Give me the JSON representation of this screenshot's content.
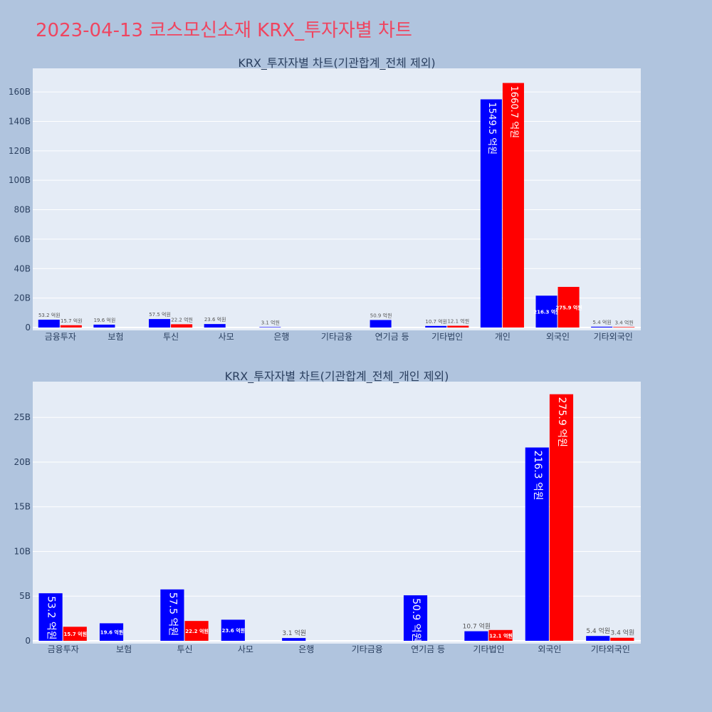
{
  "page": {
    "title": "2023-04-13 코스모신소재 KRX_투자자별 차트"
  },
  "colors": {
    "background": "#b0c4de",
    "plot_bg": "#e5ecf6",
    "buy": "#0000ff",
    "sell": "#ff0000",
    "title": "#ef4560"
  },
  "chart_data": [
    {
      "type": "bar",
      "title": "KRX_투자자별 차트(기관합계_전체 제외)",
      "categories": [
        "금융투자",
        "보험",
        "투신",
        "사모",
        "은행",
        "기타금융",
        "연기금 등",
        "기타법인",
        "개인",
        "외국인",
        "기타외국인"
      ],
      "series": [
        {
          "color": "#0000ff",
          "values": [
            5.32,
            1.96,
            5.75,
            2.36,
            0.31,
            0,
            5.09,
            1.07,
            154.95,
            21.63,
            0.54
          ],
          "labels": [
            "53.2 억원",
            "19.6 억원",
            "57.5 억원",
            "23.6 억원",
            "3.1 억원",
            "",
            "50.9 억원",
            "10.7 억원",
            "1549.5 억원",
            "216.3 억원",
            "5.4 억원"
          ]
        },
        {
          "color": "#ff0000",
          "values": [
            1.57,
            0,
            2.22,
            0,
            0,
            0,
            0,
            1.21,
            166.07,
            27.59,
            0.34
          ],
          "labels": [
            "15.7 억원",
            "",
            "22.2 억원",
            "",
            "",
            "",
            "",
            "12.1 억원",
            "1660.7 억원",
            "275.9 억원",
            "3.4 억원"
          ]
        }
      ],
      "yticks": [
        "0",
        "20B",
        "40B",
        "60B",
        "80B",
        "100B",
        "120B",
        "140B",
        "160B"
      ],
      "ylim": [
        0,
        176
      ],
      "grid": true,
      "legend": "none"
    },
    {
      "type": "bar",
      "title": "KRX_투자자별 차트(기관합계_전체_개인 제외)",
      "categories": [
        "금융투자",
        "보험",
        "투신",
        "사모",
        "은행",
        "기타금융",
        "연기금 등",
        "기타법인",
        "외국인",
        "기타외국인"
      ],
      "series": [
        {
          "color": "#0000ff",
          "values": [
            5.32,
            1.96,
            5.75,
            2.36,
            0.31,
            0,
            5.09,
            1.07,
            21.63,
            0.54
          ],
          "labels": [
            "53.2 억원",
            "19.6 억원",
            "57.5 억원",
            "23.6 억원",
            "3.1 억원",
            "",
            "50.9 억원",
            "10.7 억원",
            "216.3 억원",
            "5.4 억원"
          ]
        },
        {
          "color": "#ff0000",
          "values": [
            1.57,
            0,
            2.22,
            0,
            0,
            0,
            0,
            1.21,
            27.59,
            0.34
          ],
          "labels": [
            "15.7 억원",
            "",
            "22.2 억원",
            "",
            "",
            "",
            "",
            "12.1 억원",
            "275.9 억원",
            "3.4 억원"
          ]
        }
      ],
      "yticks": [
        "0",
        "5B",
        "10B",
        "15B",
        "20B",
        "25B"
      ],
      "ylim": [
        0,
        29
      ],
      "grid": true,
      "legend": "none"
    }
  ]
}
